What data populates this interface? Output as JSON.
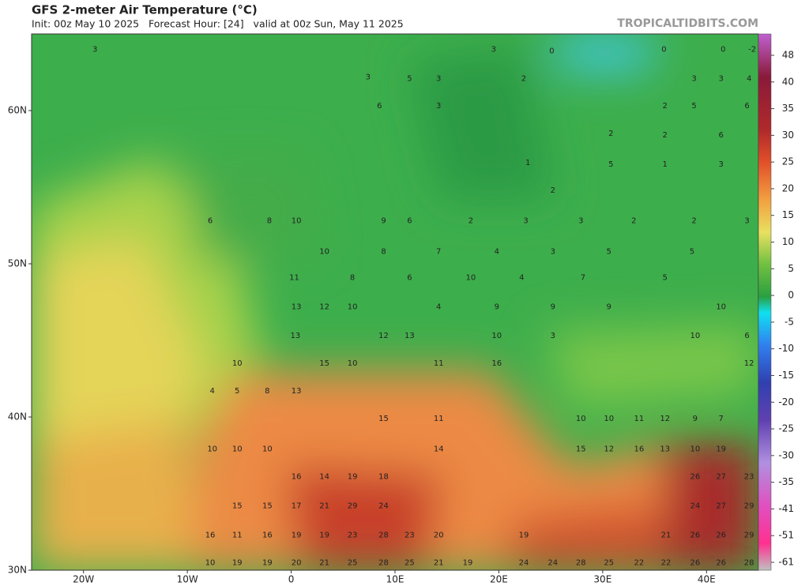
{
  "header": {
    "title": "GFS 2-meter Air Temperature (°C)",
    "subtitle": "Init: 00z May 10 2025   Forecast Hour: [24]   valid at 00z Sun, May 11 2025",
    "watermark": "TROPICALTIDBITS.COM"
  },
  "map": {
    "lon_range": [
      -25,
      45
    ],
    "lat_range": [
      30,
      65
    ],
    "lat_labels": [
      {
        "value": 60,
        "label": "60N"
      },
      {
        "value": 50,
        "label": "50N"
      },
      {
        "value": 40,
        "label": "40N"
      },
      {
        "value": 30,
        "label": "30N"
      }
    ],
    "lon_labels": [
      {
        "value": -20,
        "label": "20W"
      },
      {
        "value": -10,
        "label": "10W"
      },
      {
        "value": 0,
        "label": "0"
      },
      {
        "value": 10,
        "label": "10E"
      },
      {
        "value": 20,
        "label": "20E"
      },
      {
        "value": 30,
        "label": "30E"
      },
      {
        "value": 40,
        "label": "40E"
      }
    ],
    "points": [
      [
        -18.9,
        64.0,
        3
      ],
      [
        7.4,
        62.2,
        3
      ],
      [
        11.4,
        62.1,
        5
      ],
      [
        14.2,
        62.1,
        3
      ],
      [
        19.5,
        64.0,
        3
      ],
      [
        25.1,
        63.9,
        0
      ],
      [
        35.9,
        64.0,
        0
      ],
      [
        41.6,
        64.0,
        0
      ],
      [
        44.4,
        64.0,
        -2
      ],
      [
        8.5,
        60.3,
        6
      ],
      [
        14.2,
        60.3,
        3
      ],
      [
        22.4,
        62.1,
        2
      ],
      [
        38.8,
        62.1,
        3
      ],
      [
        41.4,
        62.1,
        3
      ],
      [
        44.1,
        62.1,
        4
      ],
      [
        36.0,
        60.3,
        2
      ],
      [
        38.8,
        60.3,
        5
      ],
      [
        43.9,
        60.3,
        6
      ],
      [
        30.8,
        58.5,
        2
      ],
      [
        36.0,
        58.4,
        2
      ],
      [
        41.4,
        58.4,
        6
      ],
      [
        22.8,
        56.6,
        1
      ],
      [
        25.2,
        54.8,
        2
      ],
      [
        30.8,
        56.5,
        5
      ],
      [
        36.0,
        56.5,
        1
      ],
      [
        41.4,
        56.5,
        3
      ],
      [
        -7.8,
        52.8,
        6
      ],
      [
        -2.1,
        52.8,
        8
      ],
      [
        0.5,
        52.8,
        10
      ],
      [
        8.9,
        52.8,
        9
      ],
      [
        11.4,
        52.8,
        6
      ],
      [
        17.3,
        52.8,
        2
      ],
      [
        22.6,
        52.8,
        3
      ],
      [
        27.9,
        52.8,
        3
      ],
      [
        33.0,
        52.8,
        2
      ],
      [
        38.8,
        52.8,
        2
      ],
      [
        43.9,
        52.8,
        3
      ],
      [
        3.2,
        50.8,
        10
      ],
      [
        8.9,
        50.8,
        8
      ],
      [
        14.2,
        50.8,
        7
      ],
      [
        19.8,
        50.8,
        4
      ],
      [
        25.2,
        50.8,
        3
      ],
      [
        30.6,
        50.8,
        5
      ],
      [
        38.6,
        50.8,
        5
      ],
      [
        0.3,
        49.1,
        11
      ],
      [
        5.9,
        49.1,
        8
      ],
      [
        11.4,
        49.1,
        6
      ],
      [
        17.3,
        49.1,
        10
      ],
      [
        22.2,
        49.1,
        4
      ],
      [
        28.1,
        49.1,
        7
      ],
      [
        36.0,
        49.1,
        5
      ],
      [
        0.5,
        47.2,
        13
      ],
      [
        3.2,
        47.2,
        12
      ],
      [
        5.9,
        47.2,
        10
      ],
      [
        14.2,
        47.2,
        4
      ],
      [
        19.8,
        47.2,
        9
      ],
      [
        25.2,
        47.2,
        9
      ],
      [
        30.6,
        47.2,
        9
      ],
      [
        41.4,
        47.2,
        10
      ],
      [
        0.4,
        45.3,
        13
      ],
      [
        8.9,
        45.3,
        12
      ],
      [
        11.4,
        45.3,
        13
      ],
      [
        19.8,
        45.3,
        10
      ],
      [
        25.2,
        45.3,
        3
      ],
      [
        38.9,
        45.3,
        10
      ],
      [
        43.9,
        45.3,
        6
      ],
      [
        -5.2,
        43.5,
        10
      ],
      [
        3.2,
        43.5,
        15
      ],
      [
        5.9,
        43.5,
        10
      ],
      [
        14.2,
        43.5,
        11
      ],
      [
        19.8,
        43.5,
        16
      ],
      [
        44.1,
        43.5,
        12
      ],
      [
        -7.6,
        41.7,
        4
      ],
      [
        -5.2,
        41.7,
        5
      ],
      [
        -2.3,
        41.7,
        8
      ],
      [
        0.5,
        41.7,
        13
      ],
      [
        8.9,
        39.9,
        15
      ],
      [
        14.2,
        39.9,
        11
      ],
      [
        27.9,
        39.9,
        10
      ],
      [
        30.6,
        39.9,
        10
      ],
      [
        33.5,
        39.9,
        11
      ],
      [
        36.0,
        39.9,
        12
      ],
      [
        38.9,
        39.9,
        9
      ],
      [
        41.4,
        39.9,
        7
      ],
      [
        -7.6,
        37.9,
        10
      ],
      [
        -5.2,
        37.9,
        10
      ],
      [
        -2.3,
        37.9,
        10
      ],
      [
        14.2,
        37.9,
        14
      ],
      [
        27.9,
        37.9,
        15
      ],
      [
        30.6,
        37.9,
        12
      ],
      [
        33.5,
        37.9,
        16
      ],
      [
        36.0,
        37.9,
        13
      ],
      [
        38.9,
        37.9,
        10
      ],
      [
        41.4,
        37.9,
        19
      ],
      [
        0.5,
        36.1,
        16
      ],
      [
        3.2,
        36.1,
        14
      ],
      [
        5.9,
        36.1,
        19
      ],
      [
        8.9,
        36.1,
        18
      ],
      [
        38.9,
        36.1,
        26
      ],
      [
        41.4,
        36.1,
        27
      ],
      [
        44.1,
        36.1,
        23
      ],
      [
        -5.2,
        34.2,
        15
      ],
      [
        -2.3,
        34.2,
        15
      ],
      [
        0.5,
        34.2,
        17
      ],
      [
        3.2,
        34.2,
        21
      ],
      [
        5.9,
        34.2,
        29
      ],
      [
        8.9,
        34.2,
        24
      ],
      [
        38.9,
        34.2,
        24
      ],
      [
        41.4,
        34.2,
        27
      ],
      [
        44.1,
        34.2,
        29
      ],
      [
        -7.8,
        32.3,
        16
      ],
      [
        -5.2,
        32.3,
        11
      ],
      [
        -2.3,
        32.3,
        16
      ],
      [
        0.5,
        32.3,
        19
      ],
      [
        3.2,
        32.3,
        19
      ],
      [
        5.9,
        32.3,
        23
      ],
      [
        8.9,
        32.3,
        28
      ],
      [
        11.4,
        32.3,
        23
      ],
      [
        14.2,
        32.3,
        20
      ],
      [
        22.4,
        32.3,
        19
      ],
      [
        36.1,
        32.3,
        21
      ],
      [
        38.9,
        32.3,
        26
      ],
      [
        41.4,
        32.3,
        26
      ],
      [
        44.1,
        32.3,
        29
      ],
      [
        -7.8,
        30.5,
        10
      ],
      [
        -5.2,
        30.5,
        19
      ],
      [
        -2.3,
        30.5,
        19
      ],
      [
        0.5,
        30.5,
        20
      ],
      [
        3.2,
        30.5,
        21
      ],
      [
        5.9,
        30.5,
        25
      ],
      [
        8.9,
        30.5,
        28
      ],
      [
        11.4,
        30.5,
        25
      ],
      [
        14.2,
        30.5,
        21
      ],
      [
        17.0,
        30.5,
        19
      ],
      [
        22.4,
        30.5,
        24
      ],
      [
        25.2,
        30.5,
        24
      ],
      [
        27.9,
        30.5,
        28
      ],
      [
        30.6,
        30.5,
        25
      ],
      [
        33.5,
        30.5,
        22
      ],
      [
        36.1,
        30.5,
        22
      ],
      [
        38.9,
        30.5,
        26
      ],
      [
        41.4,
        30.5,
        26
      ],
      [
        44.1,
        30.5,
        28
      ]
    ]
  },
  "colorbar": {
    "ticks": [
      48,
      40,
      35,
      30,
      25,
      20,
      15,
      10,
      5,
      0,
      -5,
      -10,
      -15,
      -20,
      -25,
      -30,
      -35,
      -41,
      -51,
      -61
    ]
  }
}
